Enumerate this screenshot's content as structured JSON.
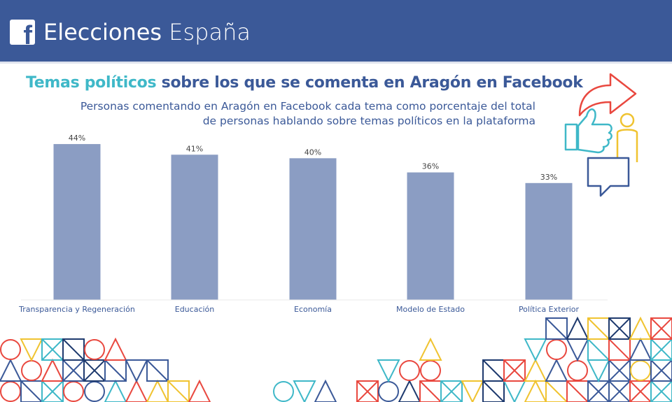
{
  "header": {
    "title_bold": "Elecciones",
    "title_light": "España",
    "logo_letter": "f"
  },
  "title": {
    "highlight": "Temas políticos",
    "rest": " sobre los que se comenta en Aragón en Facebook"
  },
  "subtitle": "Personas comentando en Aragón en Facebook cada tema como porcentaje del total de personas hablando sobre temas políticos en la plataforma",
  "colors": {
    "header_bg": "#3b5998",
    "bar": "#8b9dc3",
    "highlight": "#3fb8c8",
    "pattern": [
      "#3b5998",
      "#f0c330",
      "#e9483f",
      "#3fb8c8",
      "#1e3a6e"
    ]
  },
  "icons": [
    "like-icon",
    "share-arrow-icon",
    "person-icon",
    "chat-bubble-icon"
  ],
  "chart_data": {
    "type": "bar",
    "categories": [
      "Transparencia y Regeneración",
      "Educación",
      "Economía",
      "Modelo de Estado",
      "Política Exterior"
    ],
    "values": [
      44,
      41,
      40,
      36,
      33
    ],
    "value_labels": [
      "44%",
      "41%",
      "40%",
      "36%",
      "33%"
    ],
    "ylim": [
      0,
      45
    ],
    "grid": false,
    "legend": "none"
  }
}
